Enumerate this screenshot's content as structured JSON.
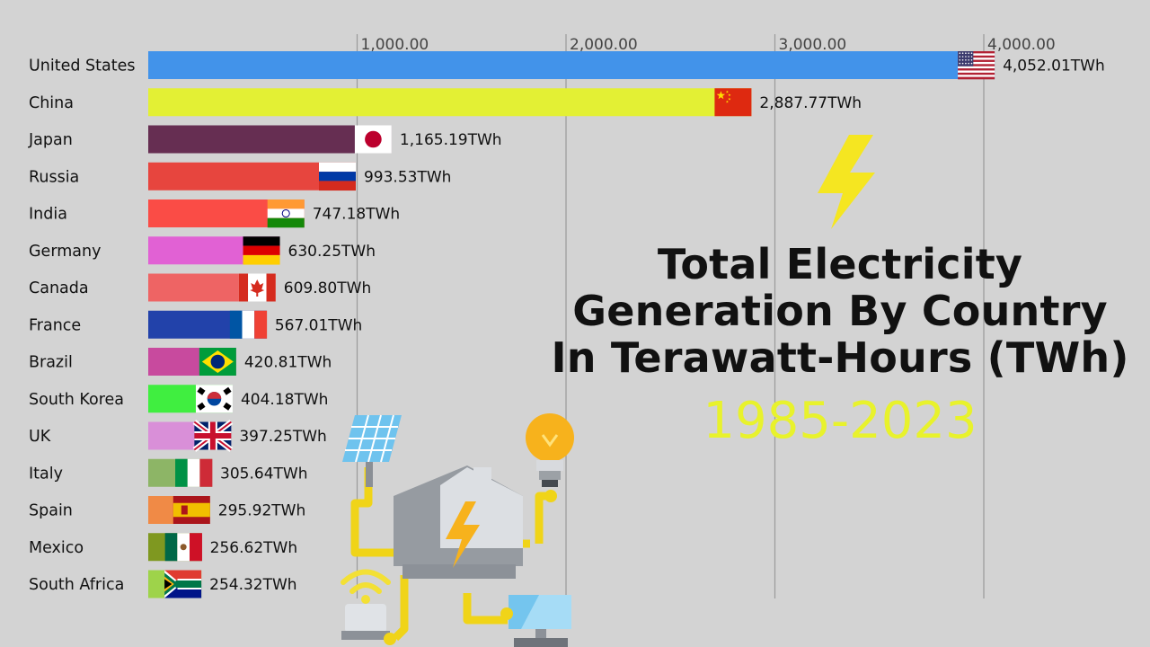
{
  "chart_data": {
    "type": "bar",
    "orientation": "horizontal",
    "title_lines": [
      "Total Electricity",
      "Generation By Country",
      "In Terawatt-Hours (TWh)"
    ],
    "subtitle": "1985-2023",
    "value_suffix": "TWh",
    "x_ticks": [
      1000,
      2000,
      3000,
      4000
    ],
    "x_tick_labels": [
      "1,000.00",
      "2,000.00",
      "3,000.00",
      "4,000.00"
    ],
    "xlim": [
      0,
      4000
    ],
    "grid": true,
    "categories": [
      "United States",
      "China",
      "Japan",
      "Russia",
      "India",
      "Germany",
      "Canada",
      "France",
      "Brazil",
      "South Korea",
      "UK",
      "Italy",
      "Spain",
      "Mexico",
      "South Africa"
    ],
    "values": [
      4052.01,
      2887.77,
      1165.19,
      993.53,
      747.18,
      630.25,
      609.8,
      567.01,
      420.81,
      404.18,
      397.25,
      305.64,
      295.92,
      256.62,
      254.32
    ],
    "value_labels": [
      "4,052.01TWh",
      "2,887.77TWh",
      "1,165.19TWh",
      "993.53TWh",
      "747.18TWh",
      "630.25TWh",
      "609.80TWh",
      "567.01TWh",
      "420.81TWh",
      "404.18TWh",
      "397.25TWh",
      "305.64TWh",
      "295.92TWh",
      "256.62TWh",
      "254.32TWh"
    ],
    "colors": [
      "#4293ea",
      "#e3f034",
      "#662e52",
      "#e7453e",
      "#fa4c46",
      "#e161d4",
      "#ee6464",
      "#2242aa",
      "#c84a9e",
      "#40ee40",
      "#d98fd8",
      "#8db566",
      "#f08a46",
      "#7f9820",
      "#9ed34a"
    ],
    "flags": [
      "us",
      "cn",
      "jp",
      "ru",
      "in",
      "de",
      "ca",
      "fr",
      "br",
      "kr",
      "gb",
      "it",
      "es",
      "mx",
      "za"
    ]
  },
  "decoration": {
    "icons": [
      "lightning-bolt-icon",
      "smart-home-energy-illustration"
    ],
    "bolt_color": "#f5e621"
  }
}
